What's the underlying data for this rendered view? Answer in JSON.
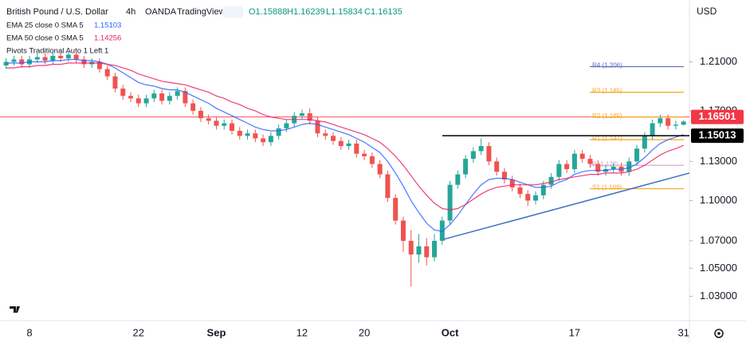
{
  "header": {
    "symbol": "British Pound / U.S. Dollar",
    "interval": "4h",
    "broker": "OANDA",
    "platform": "TradingView",
    "ohlc": [
      "O1.15888",
      "H1.16239",
      "L1.15834",
      "C1.16135"
    ],
    "currency": "USD"
  },
  "chart_data": {
    "type": "candlestick",
    "log_scale": true,
    "categories": [
      null,
      null,
      null,
      "8",
      null,
      null,
      null,
      null,
      null,
      null,
      null,
      null,
      null,
      null,
      null,
      null,
      null,
      "22",
      null,
      null,
      null,
      null,
      null,
      null,
      null,
      null,
      null,
      "Sep",
      null,
      null,
      null,
      null,
      null,
      null,
      null,
      null,
      null,
      null,
      "12",
      null,
      null,
      null,
      null,
      null,
      null,
      null,
      "20",
      null,
      null,
      null,
      null,
      null,
      null,
      null,
      null,
      null,
      null,
      "Oct",
      null,
      null,
      null,
      null,
      null,
      null,
      null,
      null,
      null,
      null,
      null,
      null,
      null,
      null,
      null,
      "17",
      null,
      null,
      null,
      null,
      null,
      null,
      null,
      null,
      null,
      null,
      null,
      null,
      null,
      "31"
    ],
    "open": [
      1.207,
      1.21,
      1.212,
      1.208,
      1.212,
      1.214,
      1.211,
      1.215,
      1.213,
      1.216,
      1.212,
      1.208,
      1.21,
      1.204,
      1.198,
      1.188,
      1.182,
      1.18,
      1.176,
      1.18,
      1.184,
      1.178,
      1.182,
      1.186,
      1.176,
      1.17,
      1.164,
      1.162,
      1.158,
      1.16,
      1.154,
      1.15,
      1.152,
      1.148,
      1.145,
      1.15,
      1.156,
      1.16,
      1.166,
      1.168,
      1.162,
      1.152,
      1.15,
      1.146,
      1.142,
      1.144,
      1.136,
      1.134,
      1.128,
      1.12,
      1.102,
      1.085,
      1.07,
      1.06,
      1.066,
      1.058,
      1.07,
      1.085,
      1.112,
      1.12,
      1.132,
      1.138,
      1.142,
      1.13,
      1.122,
      1.116,
      1.11,
      1.105,
      1.1,
      1.104,
      1.112,
      1.118,
      1.128,
      1.124,
      1.136,
      1.132,
      1.128,
      1.122,
      1.124,
      1.126,
      1.122,
      1.13,
      1.14,
      1.15,
      1.16,
      1.164,
      1.158,
      1.15888
    ],
    "high": [
      1.213,
      1.215,
      1.215,
      1.215,
      1.217,
      1.217,
      1.218,
      1.218,
      1.219,
      1.219,
      1.215,
      1.213,
      1.213,
      1.207,
      1.201,
      1.191,
      1.185,
      1.183,
      1.183,
      1.187,
      1.187,
      1.185,
      1.189,
      1.189,
      1.179,
      1.173,
      1.167,
      1.165,
      1.163,
      1.163,
      1.157,
      1.155,
      1.155,
      1.151,
      1.153,
      1.159,
      1.163,
      1.169,
      1.171,
      1.172,
      1.165,
      1.155,
      1.153,
      1.149,
      1.147,
      1.147,
      1.139,
      1.137,
      1.131,
      1.123,
      1.105,
      1.088,
      1.078,
      1.075,
      1.072,
      1.075,
      1.088,
      1.115,
      1.123,
      1.135,
      1.141,
      1.148,
      1.145,
      1.133,
      1.125,
      1.119,
      1.113,
      1.108,
      1.107,
      1.115,
      1.121,
      1.131,
      1.131,
      1.139,
      1.139,
      1.135,
      1.131,
      1.127,
      1.129,
      1.129,
      1.133,
      1.143,
      1.153,
      1.163,
      1.167,
      1.167,
      1.162,
      1.16239
    ],
    "low": [
      1.204,
      1.207,
      1.205,
      1.205,
      1.209,
      1.208,
      1.208,
      1.21,
      1.21,
      1.209,
      1.205,
      1.205,
      1.201,
      1.195,
      1.185,
      1.179,
      1.177,
      1.173,
      1.173,
      1.177,
      1.175,
      1.175,
      1.179,
      1.173,
      1.167,
      1.161,
      1.159,
      1.155,
      1.155,
      1.151,
      1.147,
      1.147,
      1.145,
      1.142,
      1.142,
      1.147,
      1.153,
      1.157,
      1.163,
      1.159,
      1.149,
      1.147,
      1.143,
      1.139,
      1.139,
      1.133,
      1.131,
      1.125,
      1.117,
      1.099,
      1.082,
      1.062,
      1.037,
      1.054,
      1.052,
      1.055,
      1.067,
      1.082,
      1.109,
      1.117,
      1.129,
      1.135,
      1.127,
      1.119,
      1.113,
      1.107,
      1.102,
      1.096,
      1.097,
      1.101,
      1.109,
      1.115,
      1.121,
      1.121,
      1.129,
      1.125,
      1.119,
      1.119,
      1.121,
      1.119,
      1.119,
      1.127,
      1.137,
      1.147,
      1.157,
      1.155,
      1.155,
      1.15834
    ],
    "close": [
      1.21,
      1.212,
      1.208,
      1.212,
      1.214,
      1.211,
      1.215,
      1.213,
      1.216,
      1.212,
      1.208,
      1.21,
      1.204,
      1.198,
      1.188,
      1.182,
      1.18,
      1.176,
      1.18,
      1.184,
      1.178,
      1.182,
      1.186,
      1.176,
      1.17,
      1.164,
      1.162,
      1.158,
      1.16,
      1.154,
      1.15,
      1.152,
      1.148,
      1.145,
      1.15,
      1.156,
      1.16,
      1.166,
      1.168,
      1.162,
      1.152,
      1.15,
      1.146,
      1.142,
      1.144,
      1.136,
      1.134,
      1.128,
      1.12,
      1.102,
      1.085,
      1.07,
      1.06,
      1.066,
      1.058,
      1.07,
      1.085,
      1.112,
      1.12,
      1.132,
      1.138,
      1.142,
      1.13,
      1.122,
      1.116,
      1.11,
      1.105,
      1.1,
      1.104,
      1.112,
      1.118,
      1.128,
      1.124,
      1.136,
      1.132,
      1.128,
      1.122,
      1.124,
      1.126,
      1.122,
      1.13,
      1.14,
      1.15,
      1.16,
      1.164,
      1.158,
      1.15888,
      1.16135
    ],
    "up_color": "#26a69a",
    "down_color": "#ef5350",
    "series": [
      {
        "name": "EMA 25 close 0 SMA 5",
        "color": "#2962ff",
        "values": [
          1.209,
          1.209,
          1.209,
          1.21,
          1.21,
          1.21,
          1.211,
          1.211,
          1.212,
          1.212,
          1.211,
          1.211,
          1.21,
          1.208,
          1.205,
          1.201,
          1.197,
          1.193,
          1.191,
          1.19,
          1.188,
          1.187,
          1.187,
          1.185,
          1.182,
          1.179,
          1.176,
          1.172,
          1.169,
          1.166,
          1.163,
          1.16,
          1.157,
          1.155,
          1.154,
          1.154,
          1.155,
          1.157,
          1.159,
          1.16,
          1.159,
          1.157,
          1.155,
          1.153,
          1.151,
          1.148,
          1.145,
          1.141,
          1.137,
          1.13,
          1.121,
          1.111,
          1.1,
          1.091,
          1.083,
          1.078,
          1.077,
          1.082,
          1.089,
          1.097,
          1.105,
          1.112,
          1.116,
          1.117,
          1.117,
          1.116,
          1.114,
          1.112,
          1.11,
          1.11,
          1.111,
          1.114,
          1.116,
          1.12,
          1.122,
          1.123,
          1.123,
          1.123,
          1.124,
          1.124,
          1.125,
          1.128,
          1.133,
          1.139,
          1.144,
          1.147,
          1.149,
          1.15103
        ]
      },
      {
        "name": "EMA 50 close 0 SMA 5",
        "color": "#e91e63",
        "values": [
          1.205,
          1.205,
          1.206,
          1.206,
          1.207,
          1.207,
          1.208,
          1.208,
          1.209,
          1.209,
          1.209,
          1.209,
          1.209,
          1.208,
          1.207,
          1.205,
          1.203,
          1.2,
          1.198,
          1.196,
          1.194,
          1.193,
          1.192,
          1.191,
          1.189,
          1.187,
          1.185,
          1.182,
          1.18,
          1.177,
          1.175,
          1.172,
          1.17,
          1.167,
          1.165,
          1.164,
          1.163,
          1.163,
          1.163,
          1.163,
          1.162,
          1.161,
          1.159,
          1.157,
          1.155,
          1.153,
          1.151,
          1.148,
          1.145,
          1.14,
          1.134,
          1.127,
          1.119,
          1.111,
          1.104,
          1.098,
          1.094,
          1.093,
          1.094,
          1.097,
          1.101,
          1.105,
          1.108,
          1.11,
          1.111,
          1.112,
          1.112,
          1.112,
          1.112,
          1.113,
          1.114,
          1.116,
          1.117,
          1.118,
          1.119,
          1.12,
          1.12,
          1.121,
          1.121,
          1.121,
          1.122,
          1.124,
          1.127,
          1.131,
          1.135,
          1.138,
          1.14,
          1.14256
        ]
      }
    ],
    "pivots_name": "Pivots Traditional Auto 1 Left 1",
    "pivots": [
      {
        "label": "R4 (1.206)",
        "value": 1.206,
        "color": "#5c6bc0"
      },
      {
        "label": "R3 (1.185)",
        "value": 1.185,
        "color": "#f5a623"
      },
      {
        "label": "R2 (1.165)",
        "value": 1.165,
        "color": "#f5a623"
      },
      {
        "label": "R1 (1.147)",
        "value": 1.147,
        "color": "#f5a623"
      },
      {
        "label": "P (1.127)",
        "value": 1.127,
        "color": "#d1a3c0"
      },
      {
        "label": "S1 (1.109)",
        "value": 1.109,
        "color": "#f5a623"
      }
    ],
    "price_lines": [
      {
        "value": 1.16501,
        "color": "#f23645"
      },
      {
        "value": 1.15013,
        "color": "#000000"
      }
    ],
    "trendline": {
      "values": [
        1.071,
        1.121
      ],
      "color": "#3d6fc4"
    },
    "ylim": [
      1.014,
      1.257
    ],
    "yticks": [
      {
        "value": 1.21,
        "label": "1.21000"
      },
      {
        "value": 1.17,
        "label": "1.17000"
      },
      {
        "value": 1.13,
        "label": "1.13000"
      },
      {
        "value": 1.1,
        "label": "1.10000"
      },
      {
        "value": 1.07,
        "label": "1.07000"
      },
      {
        "value": 1.05,
        "label": "1.05000"
      },
      {
        "value": 1.03,
        "label": "1.03000"
      }
    ],
    "grid": false
  }
}
